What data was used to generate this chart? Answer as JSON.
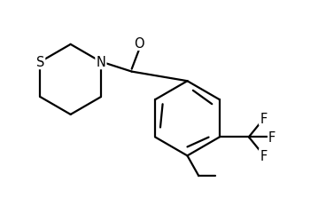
{
  "background_color": "#ffffff",
  "line_color": "#000000",
  "line_width": 1.6,
  "font_size": 10.5,
  "figsize": [
    3.68,
    2.32
  ],
  "dpi": 100,
  "xlim": [
    0.0,
    10.0
  ],
  "ylim": [
    0.0,
    6.3
  ]
}
